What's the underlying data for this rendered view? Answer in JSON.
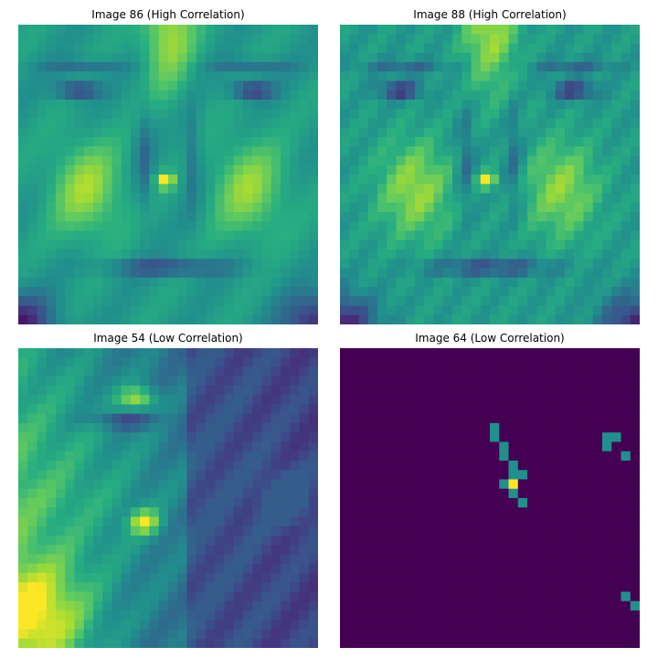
{
  "panels": [
    {
      "title": "Image 86 (High Correlation)",
      "kind": "face"
    },
    {
      "title": "Image 88 (High Correlation)",
      "kind": "face"
    },
    {
      "title": "Image 54 (Low Correlation)",
      "kind": "side-face"
    },
    {
      "title": "Image 64 (Low Correlation)",
      "kind": "sparse"
    }
  ],
  "colormap": "viridis",
  "colors": {
    "dark": "#440154",
    "mid": "#21918c",
    "bright": "#fde725"
  }
}
